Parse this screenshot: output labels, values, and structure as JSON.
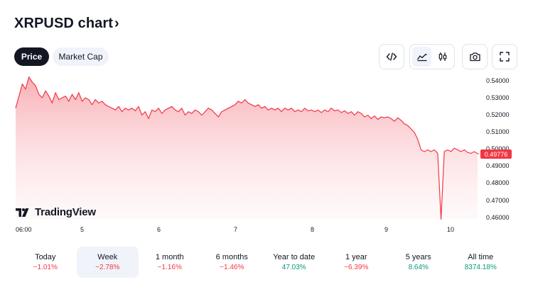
{
  "header": {
    "title": "XRPUSD chart",
    "chevron": "›"
  },
  "tabs": [
    {
      "label": "Price",
      "active": true
    },
    {
      "label": "Market Cap",
      "active": false
    }
  ],
  "toolbar": {
    "embed_icon": "code-icon",
    "area_icon": "area-chart-icon",
    "candle_icon": "candlestick-icon",
    "snapshot_icon": "camera-icon",
    "fullscreen_icon": "fullscreen-icon",
    "selected": "area"
  },
  "colors": {
    "line": "#f23645",
    "fill_top": "#f7a1a8",
    "badge": "#f23645",
    "positive": "#089981",
    "negative": "#f23645"
  },
  "branding": {
    "name": "TradingView"
  },
  "chart_data": {
    "type": "area",
    "y_ticks": [
      "0.54000",
      "0.53000",
      "0.52000",
      "0.51000",
      "0.50000",
      "0.49000",
      "0.48000",
      "0.47000",
      "0.46000"
    ],
    "ylim": [
      0.46,
      0.545
    ],
    "x_ticks": [
      "06:00",
      "5",
      "6",
      "7",
      "8",
      "9",
      "10"
    ],
    "current_price": "0.49776",
    "series": [
      {
        "values": [
          0.524,
          0.531,
          0.538,
          0.535,
          0.542,
          0.539,
          0.537,
          0.532,
          0.53,
          0.534,
          0.531,
          0.527,
          0.533,
          0.529,
          0.53,
          0.531,
          0.528,
          0.532,
          0.529,
          0.533,
          0.528,
          0.53,
          0.529,
          0.526,
          0.529,
          0.527,
          0.528,
          0.526,
          0.525,
          0.524,
          0.523,
          0.525,
          0.522,
          0.524,
          0.523,
          0.524,
          0.5225,
          0.525,
          0.52,
          0.522,
          0.518,
          0.523,
          0.522,
          0.524,
          0.521,
          0.523,
          0.524,
          0.525,
          0.523,
          0.522,
          0.524,
          0.52,
          0.522,
          0.521,
          0.523,
          0.522,
          0.52,
          0.522,
          0.524,
          0.523,
          0.521,
          0.519,
          0.522,
          0.523,
          0.524,
          0.525,
          0.526,
          0.528,
          0.527,
          0.529,
          0.527,
          0.526,
          0.525,
          0.526,
          0.524,
          0.525,
          0.523,
          0.524,
          0.523,
          0.524,
          0.522,
          0.524,
          0.523,
          0.524,
          0.522,
          0.523,
          0.522,
          0.524,
          0.5225,
          0.523,
          0.522,
          0.523,
          0.5215,
          0.523,
          0.522,
          0.524,
          0.5225,
          0.523,
          0.5215,
          0.5225,
          0.521,
          0.522,
          0.52,
          0.522,
          0.521,
          0.519,
          0.52,
          0.518,
          0.5195,
          0.5175,
          0.519,
          0.5185,
          0.519,
          0.518,
          0.5165,
          0.5185,
          0.517,
          0.515,
          0.514,
          0.512,
          0.51,
          0.506,
          0.5,
          0.499,
          0.5,
          0.499,
          0.5,
          0.498,
          0.46,
          0.499,
          0.5,
          0.499,
          0.501,
          0.5,
          0.499,
          0.5,
          0.4985,
          0.498,
          0.499,
          0.4978
        ]
      }
    ]
  },
  "periods": [
    {
      "label": "Today",
      "change": "−1.01%",
      "positive": false,
      "selected": false
    },
    {
      "label": "Week",
      "change": "−2.78%",
      "positive": false,
      "selected": true
    },
    {
      "label": "1 month",
      "change": "−1.16%",
      "positive": false,
      "selected": false
    },
    {
      "label": "6 months",
      "change": "−1.46%",
      "positive": false,
      "selected": false
    },
    {
      "label": "Year to date",
      "change": "47.03%",
      "positive": true,
      "selected": false
    },
    {
      "label": "1 year",
      "change": "−6.39%",
      "positive": false,
      "selected": false
    },
    {
      "label": "5 years",
      "change": "8.64%",
      "positive": true,
      "selected": false
    },
    {
      "label": "All time",
      "change": "8374.18%",
      "positive": true,
      "selected": false
    }
  ]
}
